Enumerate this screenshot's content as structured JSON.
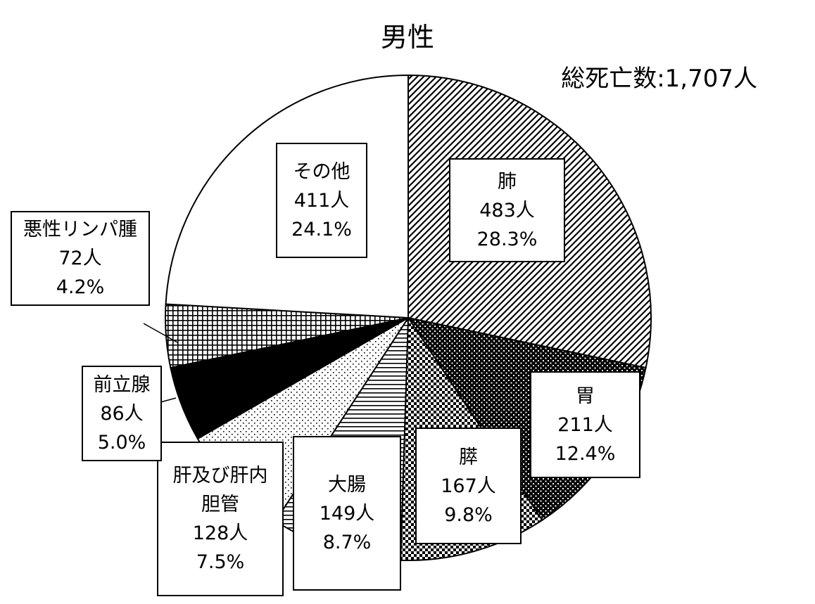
{
  "chart_data": {
    "type": "pie",
    "title": "男性",
    "subtitle": "総死亡数:1,707人",
    "slices": [
      {
        "name": "肺",
        "count": "483人",
        "percent": "28.3%",
        "value": 28.3
      },
      {
        "name": "胃",
        "count": "211人",
        "percent": "12.4%",
        "value": 12.4
      },
      {
        "name": "膵",
        "count": "167人",
        "percent": "9.8%",
        "value": 9.8
      },
      {
        "name": "大腸",
        "count": "149人",
        "percent": "8.7%",
        "value": 8.7
      },
      {
        "name_line1": "肝及び肝内",
        "name_line2": "胆管",
        "count": "128人",
        "percent": "7.5%",
        "value": 7.5
      },
      {
        "name": "前立腺",
        "count": "86人",
        "percent": "5.0%",
        "value": 5.0
      },
      {
        "name": "悪性リンパ腫",
        "count": "72人",
        "percent": "4.2%",
        "value": 4.2
      },
      {
        "name": "その他",
        "count": "411人",
        "percent": "24.1%",
        "value": 24.1
      }
    ],
    "patterns": [
      "diagonal-stripes",
      "dense-dots",
      "checkerboard",
      "horizontal-lines",
      "sparse-dots",
      "solid-black",
      "grid",
      "white"
    ]
  }
}
